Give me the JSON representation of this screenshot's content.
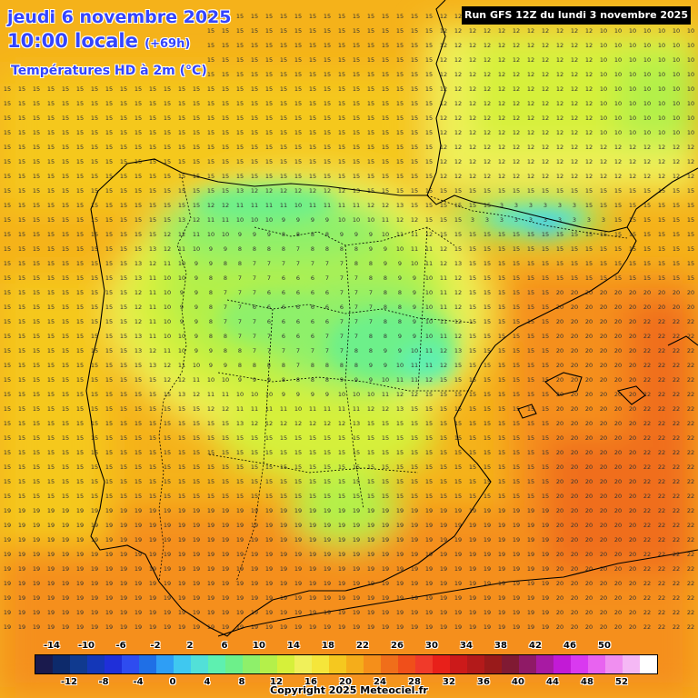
{
  "header": {
    "date_text": "jeudi 6 novembre 2025",
    "time_text": "10:00 locale",
    "lead_text": "(+69h)",
    "variable_text": "Températures HD à 2m (°C)"
  },
  "run_info": "Run GFS 12Z du lundi 3 novembre 2025",
  "copyright": "Copyright 2025 Meteociel.fr",
  "legend": {
    "top_labels": [
      "-14",
      "-10",
      "-6",
      "-2",
      "2",
      "6",
      "10",
      "14",
      "18",
      "22",
      "26",
      "30",
      "34",
      "38",
      "42",
      "46",
      "50"
    ],
    "bottom_labels": [
      "-12",
      "-8",
      "-4",
      "0",
      "4",
      "8",
      "12",
      "16",
      "20",
      "24",
      "28",
      "32",
      "36",
      "40",
      "44",
      "48",
      "52"
    ],
    "colors": [
      "#1a1a4d",
      "#0d2a6b",
      "#103a8f",
      "#1437b8",
      "#1f2fd9",
      "#2e4cf0",
      "#1f6fe6",
      "#2e9ef5",
      "#3fc8f0",
      "#52e0d8",
      "#5ef0b0",
      "#6df08a",
      "#8ef06a",
      "#b4f04a",
      "#d6f03a",
      "#f0f05a",
      "#f5e63a",
      "#f5c81f",
      "#f5ad1a",
      "#f58f1a",
      "#f06e1a",
      "#f04f1a",
      "#f03a2a",
      "#e8201a",
      "#cc1a1a",
      "#b31a1a",
      "#991a1a",
      "#801a33",
      "#8f1a66",
      "#a81aa3",
      "#c21ad6",
      "#d939f0",
      "#e863f0",
      "#f08ff0",
      "#f5b8f5",
      "#ffffff"
    ]
  },
  "colors": {
    "title": "#3344ff",
    "coast": "#000000"
  }
}
